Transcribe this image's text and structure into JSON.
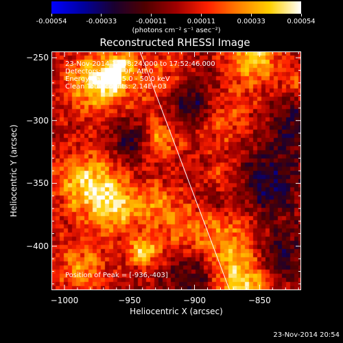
{
  "colorbar": {
    "ticks": [
      "-0.00054",
      "-0.00033",
      "-0.00011",
      "0.00011",
      "0.00033",
      "0.00054"
    ],
    "label": "(photons cm⁻² s⁻¹ asec⁻²)"
  },
  "title": "Reconstructed RHESSI Image",
  "info": {
    "line1": "23-Nov-2014 17:48:24.000 to 17:52:46.000",
    "line2": "Detectors: 3F 6F 9F, Att 0",
    "line3": "Energy Range: 25.0 - 50.0 keV",
    "line4": "Clean     Total counts: 2.14E+03"
  },
  "peak_text": "Position of Peak = [-936,-403]",
  "footer_date": "23-Nov-2014 20:54",
  "chart_data": {
    "type": "heatmap",
    "title": "Reconstructed RHESSI Image",
    "xlabel": "Heliocentric X (arcsec)",
    "ylabel": "Heliocentric Y (arcsec)",
    "xlim": [
      -1010,
      -818
    ],
    "ylim": [
      -435,
      -245
    ],
    "xticks": [
      -1000,
      -950,
      -900,
      -850
    ],
    "xtick_labels": [
      "−1000",
      "−950",
      "−900",
      "−850"
    ],
    "yticks": [
      -400,
      -350,
      -300,
      -250
    ],
    "ytick_labels": [
      "−400",
      "−350",
      "−300",
      "−250"
    ],
    "colorbar_range": [
      -0.00054,
      0.00054
    ],
    "colormap": "rhessi-bluewhite-redyellow",
    "colorbar_colors": [
      "#0000ff",
      "#0000a0",
      "#1a0030",
      "#500000",
      "#a00000",
      "#ff2000",
      "#ff8000",
      "#ffd000",
      "#ffffff"
    ],
    "limb_line": {
      "x": [
        -942,
        -873
      ],
      "y": [
        -245,
        -435
      ]
    },
    "peak_position": [
      -936,
      -403
    ]
  }
}
